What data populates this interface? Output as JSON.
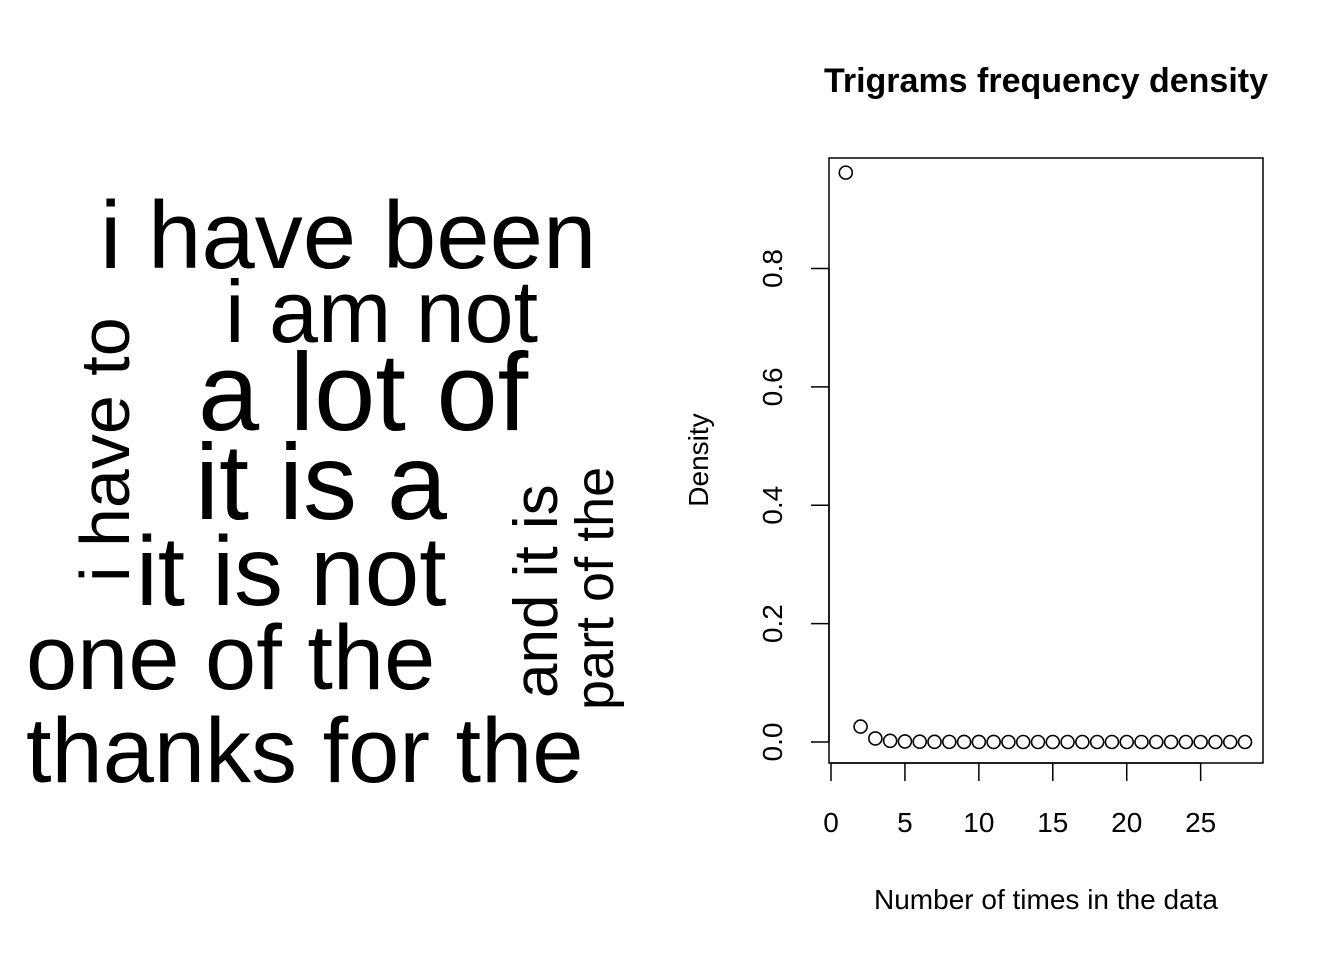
{
  "wordcloud": {
    "words": [
      "i have been",
      "i am not",
      "a lot of",
      "it is a",
      "it is not",
      "one of the",
      "thanks for the",
      "i have to",
      "and it is",
      "part of the"
    ]
  },
  "chart_data": {
    "type": "scatter",
    "title": "Trigrams frequency density",
    "xlabel": "Number of times in the data",
    "ylabel": "Density",
    "xlim": [
      0,
      28
    ],
    "ylim": [
      -0.015,
      0.985
    ],
    "xticks": [
      0,
      5,
      10,
      15,
      20,
      25
    ],
    "yticks": [
      0.0,
      0.2,
      0.4,
      0.6,
      0.8
    ],
    "ytick_labels": [
      "0.0",
      "0.2",
      "0.4",
      "0.6",
      "0.8"
    ],
    "grid": false,
    "marker": "open-circle",
    "points": [
      {
        "x": 1,
        "y": 0.962
      },
      {
        "x": 2,
        "y": 0.026
      },
      {
        "x": 3,
        "y": 0.006
      },
      {
        "x": 4,
        "y": 0.002
      },
      {
        "x": 5,
        "y": 0.001
      },
      {
        "x": 6,
        "y": 0.0005
      },
      {
        "x": 7,
        "y": 0.0003
      },
      {
        "x": 8,
        "y": 0.0002
      },
      {
        "x": 9,
        "y": 0.0001
      },
      {
        "x": 10,
        "y": 0.0001
      },
      {
        "x": 11,
        "y": 0.0001
      },
      {
        "x": 12,
        "y": 0.0
      },
      {
        "x": 13,
        "y": 0.0
      },
      {
        "x": 14,
        "y": 0.0
      },
      {
        "x": 15,
        "y": 0.0
      },
      {
        "x": 16,
        "y": 0.0
      },
      {
        "x": 17,
        "y": 0.0
      },
      {
        "x": 18,
        "y": 0.0
      },
      {
        "x": 19,
        "y": 0.0
      },
      {
        "x": 20,
        "y": 0.0
      },
      {
        "x": 21,
        "y": 0.0
      },
      {
        "x": 22,
        "y": 0.0
      },
      {
        "x": 23,
        "y": 0.0
      },
      {
        "x": 24,
        "y": 0.0
      },
      {
        "x": 25,
        "y": 0.0
      },
      {
        "x": 26,
        "y": 0.0
      },
      {
        "x": 27,
        "y": 0.0
      },
      {
        "x": 28,
        "y": 0.0
      }
    ]
  }
}
